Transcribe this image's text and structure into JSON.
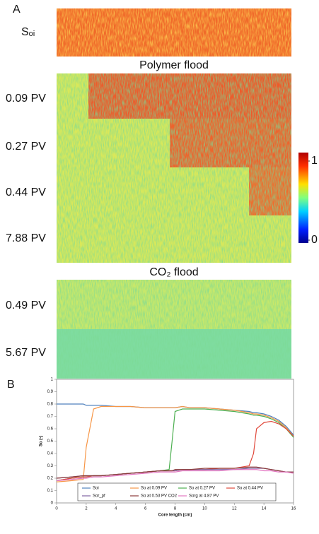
{
  "panel_a": {
    "label": "A",
    "initial_label": "Sₒᵢ",
    "polymer_title": "Polymer flood",
    "co2_title": "CO₂ flood",
    "polymer_rows": [
      "0.09 PV",
      "0.27 PV",
      "0.44 PV",
      "7.88 PV"
    ],
    "co2_rows": [
      "0.49 PV",
      "5.67 PV"
    ],
    "colorbar_ticks": [
      0,
      1
    ]
  },
  "chart_data": {
    "type": "line",
    "label": "B",
    "x_label": "Core length (cm)",
    "y_label": "So (-)",
    "x": [
      0,
      1,
      1.8,
      2,
      2.5,
      3,
      4,
      5,
      6,
      7,
      7.6,
      7.8,
      8,
      8.5,
      9,
      10,
      11,
      12,
      13,
      13.3,
      13.5,
      14,
      14.5,
      15,
      15.5,
      16
    ],
    "series": [
      {
        "name": "Soi",
        "color": "#4f81bd",
        "values": [
          0.8,
          0.8,
          0.8,
          0.79,
          0.79,
          0.79,
          0.78,
          0.78,
          0.77,
          0.77,
          0.77,
          0.77,
          0.77,
          0.78,
          0.77,
          0.77,
          0.76,
          0.75,
          0.74,
          0.73,
          0.73,
          0.72,
          0.7,
          0.67,
          0.62,
          0.55
        ]
      },
      {
        "name": "So at 0.09 PV",
        "color": "#f79646",
        "values": [
          0.17,
          0.18,
          0.19,
          0.45,
          0.76,
          0.78,
          0.78,
          0.78,
          0.77,
          0.77,
          0.77,
          0.77,
          0.77,
          0.78,
          0.77,
          0.77,
          0.76,
          0.75,
          0.73,
          0.72,
          0.72,
          0.71,
          0.69,
          0.66,
          0.61,
          0.54
        ]
      },
      {
        "name": "So at 0.27 PV",
        "color": "#4caf50",
        "values": [
          0.18,
          0.2,
          0.21,
          0.21,
          0.22,
          0.22,
          0.23,
          0.24,
          0.25,
          0.26,
          0.27,
          0.5,
          0.74,
          0.76,
          0.76,
          0.76,
          0.75,
          0.74,
          0.72,
          0.71,
          0.71,
          0.7,
          0.68,
          0.65,
          0.6,
          0.53
        ]
      },
      {
        "name": "So at 0.44 PV",
        "color": "#e0483b",
        "values": [
          0.18,
          0.2,
          0.21,
          0.21,
          0.22,
          0.22,
          0.23,
          0.24,
          0.25,
          0.26,
          0.26,
          0.26,
          0.26,
          0.27,
          0.27,
          0.27,
          0.28,
          0.28,
          0.3,
          0.4,
          0.6,
          0.65,
          0.66,
          0.64,
          0.6,
          0.54
        ]
      },
      {
        "name": "Sor_pf",
        "color": "#8064a2",
        "values": [
          0.2,
          0.21,
          0.22,
          0.22,
          0.22,
          0.22,
          0.23,
          0.24,
          0.25,
          0.26,
          0.26,
          0.26,
          0.26,
          0.27,
          0.27,
          0.27,
          0.27,
          0.27,
          0.28,
          0.28,
          0.28,
          0.28,
          0.27,
          0.26,
          0.25,
          0.25
        ]
      },
      {
        "name": "So at 0.53 PV CO2",
        "color": "#8b3a3a",
        "values": [
          0.2,
          0.21,
          0.22,
          0.22,
          0.22,
          0.22,
          0.23,
          0.24,
          0.25,
          0.26,
          0.26,
          0.26,
          0.27,
          0.27,
          0.27,
          0.28,
          0.28,
          0.28,
          0.29,
          0.29,
          0.29,
          0.28,
          0.27,
          0.26,
          0.25,
          0.25
        ]
      },
      {
        "name": "Sorg at 4.87 PV",
        "color": "#e377c2",
        "values": [
          0.18,
          0.19,
          0.2,
          0.2,
          0.21,
          0.21,
          0.22,
          0.23,
          0.24,
          0.25,
          0.25,
          0.25,
          0.25,
          0.26,
          0.26,
          0.26,
          0.26,
          0.27,
          0.27,
          0.27,
          0.27,
          0.26,
          0.26,
          0.25,
          0.25,
          0.24
        ]
      }
    ],
    "xlim": [
      0,
      16
    ],
    "xticks": [
      0,
      2,
      4,
      6,
      8,
      10,
      12,
      14,
      16
    ],
    "ylim": [
      0,
      1
    ],
    "yticks": [
      0,
      0.1,
      0.2,
      0.3,
      0.4,
      0.5,
      0.6,
      0.7,
      0.8,
      0.9,
      1
    ],
    "grid": false
  }
}
